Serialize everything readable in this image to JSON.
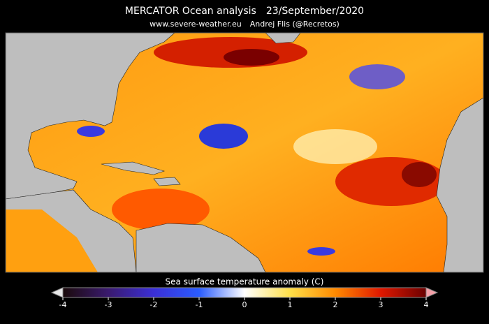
{
  "header": {
    "title": "MERCATOR Ocean analysis",
    "date": "23/September/2020",
    "site": "www.severe-weather.eu",
    "author": "Andrej Flis (@Recretos)"
  },
  "colorbar": {
    "label": "Sea surface temperature anomaly (C)",
    "range": [
      -4,
      4
    ],
    "ticks": [
      -4,
      -3,
      -2,
      -1,
      0,
      1,
      2,
      3,
      4
    ],
    "colors": [
      "#1a0a0a",
      "#3a1a6e",
      "#3b2fd6",
      "#2a5cff",
      "#ffffff",
      "#ffe04a",
      "#ff8a00",
      "#e01800",
      "#6b0000"
    ]
  }
}
